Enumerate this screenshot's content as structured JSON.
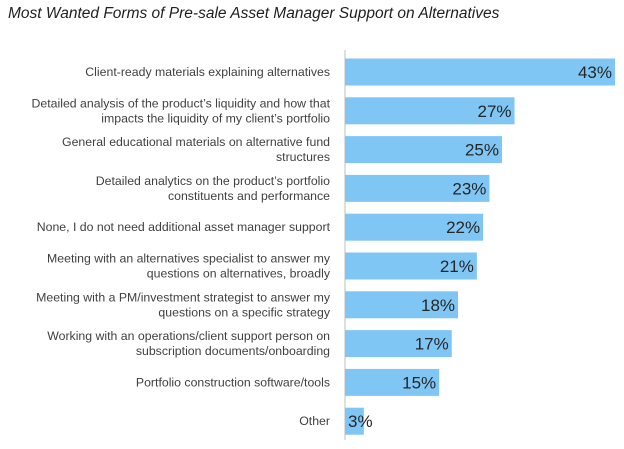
{
  "chart_data": {
    "type": "bar",
    "orientation": "horizontal",
    "title": "Most Wanted Forms of Pre-sale Asset Manager Support on Alternatives",
    "categories": [
      [
        "Client-ready materials explaining alternatives"
      ],
      [
        "Detailed analysis of the product’s liquidity and how that",
        "impacts the liquidity of my client’s portfolio"
      ],
      [
        "General educational materials on alternative fund",
        "structures"
      ],
      [
        "Detailed analytics on the product’s portfolio",
        "constituents and performance"
      ],
      [
        "None, I do not need additional asset manager support"
      ],
      [
        "Meeting with an alternatives specialist to answer my",
        "questions on alternatives, broadly"
      ],
      [
        "Meeting with a PM/investment strategist to answer my",
        "questions on a specific strategy"
      ],
      [
        "Working with an operations/client support person on",
        "subscription documents/onboarding"
      ],
      [
        "Portfolio construction software/tools"
      ],
      [
        "Other"
      ]
    ],
    "values": [
      43,
      27,
      25,
      23,
      22,
      21,
      18,
      17,
      15,
      3
    ],
    "value_labels": [
      "43%",
      "27%",
      "25%",
      "23%",
      "22%",
      "21%",
      "18%",
      "17%",
      "15%",
      "3%"
    ],
    "xlim": [
      0,
      43
    ],
    "grid": false,
    "legend": "none",
    "bar_color": "#7fc6f4"
  }
}
